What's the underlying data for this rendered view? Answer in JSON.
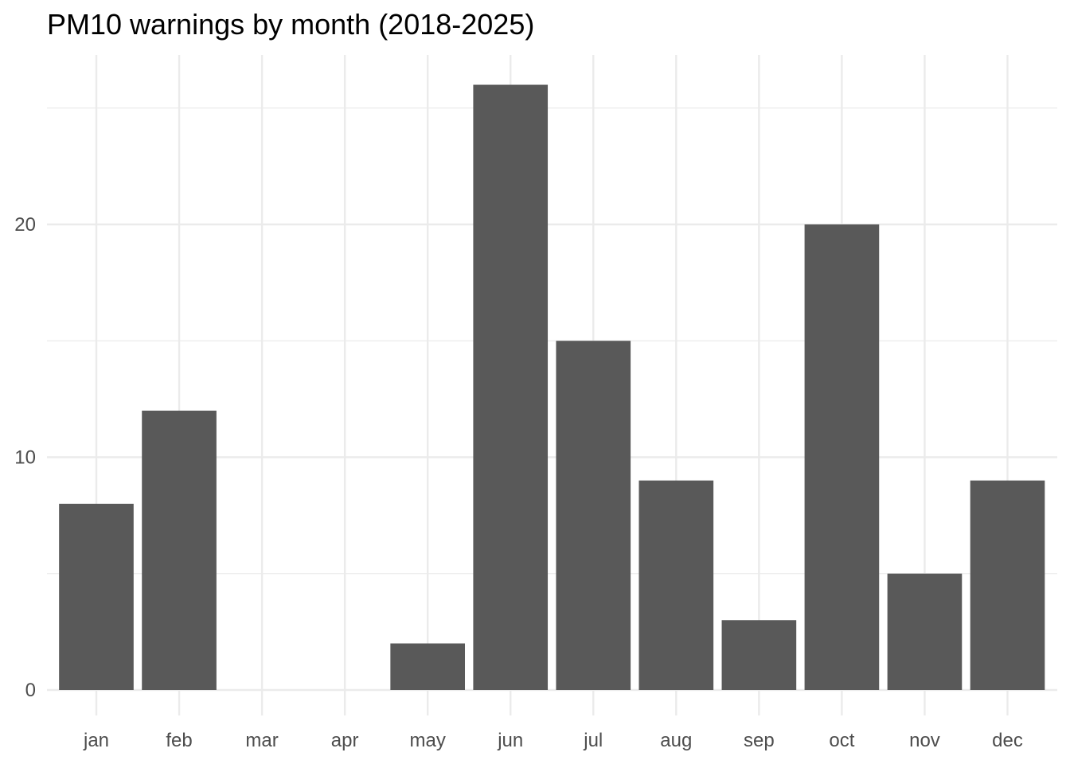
{
  "chart_data": {
    "type": "bar",
    "title": "PM10 warnings by month (2018-2025)",
    "xlabel": "",
    "ylabel": "",
    "categories": [
      "jan",
      "feb",
      "mar",
      "apr",
      "may",
      "jun",
      "jul",
      "aug",
      "sep",
      "oct",
      "nov",
      "dec"
    ],
    "values": [
      8,
      12,
      0,
      0,
      2,
      26,
      15,
      9,
      3,
      20,
      5,
      9
    ],
    "ylim": [
      -1.1,
      27.3
    ],
    "yticks": [
      0,
      10,
      20
    ],
    "grid": true,
    "legend": "none",
    "colors": {
      "bar": "#595959",
      "grid": "#ebebeb",
      "tick_text": "#4d4d4d",
      "title": "#000000"
    }
  }
}
